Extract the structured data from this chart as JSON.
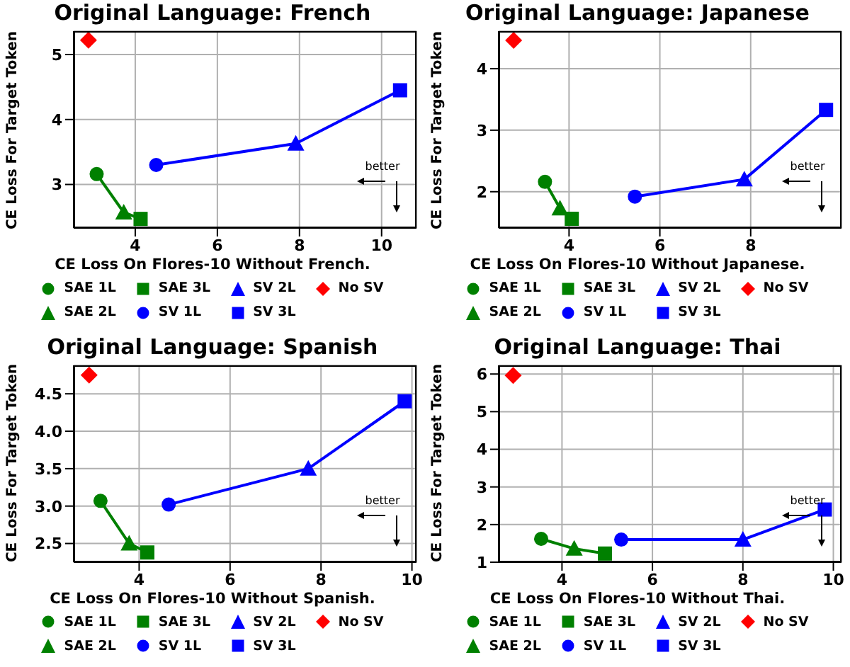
{
  "chart_data": [
    {
      "type": "scatter",
      "title": "Original Language: French",
      "xlabel": "CE Loss On Flores-10 Without French.",
      "ylabel": "CE Loss For Target Token",
      "xlim": [
        2.5,
        10.85
      ],
      "ylim": [
        2.33,
        5.36
      ],
      "xticks": [
        4,
        6,
        8,
        10
      ],
      "yticks": [
        3,
        4,
        5
      ],
      "grid": true,
      "legend": "bottom",
      "annotations": [
        "better"
      ],
      "series": [
        {
          "type": "line",
          "color": "#008000",
          "marker": "none",
          "x": [
            3.06,
            3.72,
            4.13
          ],
          "values": [
            3.16,
            2.57,
            2.47
          ]
        },
        {
          "type": "line",
          "color": "#0000ff",
          "marker": "none",
          "x": [
            4.51,
            7.91,
            10.45
          ],
          "values": [
            3.3,
            3.63,
            4.45
          ]
        },
        {
          "name": "SAE 1L",
          "color": "#008000",
          "marker": "circle",
          "x": [
            3.06
          ],
          "values": [
            3.16
          ]
        },
        {
          "name": "SAE 2L",
          "color": "#008000",
          "marker": "triangle",
          "x": [
            3.72
          ],
          "values": [
            2.57
          ]
        },
        {
          "name": "SAE 3L",
          "color": "#008000",
          "marker": "square",
          "x": [
            4.13
          ],
          "values": [
            2.47
          ]
        },
        {
          "name": "SV 1L",
          "color": "#0000ff",
          "marker": "circle",
          "x": [
            4.51
          ],
          "values": [
            3.3
          ]
        },
        {
          "name": "SV 2L",
          "color": "#0000ff",
          "marker": "triangle",
          "x": [
            7.91
          ],
          "values": [
            3.63
          ]
        },
        {
          "name": "SV 3L",
          "color": "#0000ff",
          "marker": "square",
          "x": [
            10.45
          ],
          "values": [
            4.45
          ]
        },
        {
          "name": "No SV",
          "color": "#ff0000",
          "marker": "diamond",
          "x": [
            2.86
          ],
          "values": [
            5.22
          ]
        }
      ]
    },
    {
      "type": "scatter",
      "title": "Original Language: Japanese",
      "xlabel": "CE Loss On Flores-10 Without Japanese.",
      "ylabel": "CE Loss For Target Token",
      "xlim": [
        2.45,
        10.0
      ],
      "ylim": [
        1.41,
        4.61
      ],
      "xticks": [
        4,
        6,
        8
      ],
      "yticks": [
        2,
        3,
        4
      ],
      "grid": true,
      "legend": "bottom",
      "annotations": [
        "better"
      ],
      "series": [
        {
          "type": "line",
          "color": "#008000",
          "marker": "none",
          "x": [
            3.47,
            3.8,
            4.06
          ],
          "values": [
            2.16,
            1.73,
            1.56
          ]
        },
        {
          "type": "line",
          "color": "#0000ff",
          "marker": "none",
          "x": [
            5.45,
            7.86,
            9.66
          ],
          "values": [
            1.92,
            2.2,
            3.33
          ]
        },
        {
          "name": "SAE 1L",
          "color": "#008000",
          "marker": "circle",
          "x": [
            3.47
          ],
          "values": [
            2.16
          ]
        },
        {
          "name": "SAE 2L",
          "color": "#008000",
          "marker": "triangle",
          "x": [
            3.8
          ],
          "values": [
            1.73
          ]
        },
        {
          "name": "SAE 3L",
          "color": "#008000",
          "marker": "square",
          "x": [
            4.06
          ],
          "values": [
            1.56
          ]
        },
        {
          "name": "SV 1L",
          "color": "#0000ff",
          "marker": "circle",
          "x": [
            5.45
          ],
          "values": [
            1.92
          ]
        },
        {
          "name": "SV 2L",
          "color": "#0000ff",
          "marker": "triangle",
          "x": [
            7.86
          ],
          "values": [
            2.2
          ]
        },
        {
          "name": "SV 3L",
          "color": "#0000ff",
          "marker": "square",
          "x": [
            9.66
          ],
          "values": [
            3.33
          ]
        },
        {
          "name": "No SV",
          "color": "#ff0000",
          "marker": "diamond",
          "x": [
            2.78
          ],
          "values": [
            4.46
          ]
        }
      ]
    },
    {
      "type": "scatter",
      "title": "Original Language: Spanish",
      "xlabel": "CE Loss On Flores-10 Without Spanish.",
      "ylabel": "CE Loss For Target Token",
      "xlim": [
        2.56,
        10.1
      ],
      "ylim": [
        2.25,
        4.88
      ],
      "xticks": [
        4,
        6,
        8,
        10
      ],
      "yticks": [
        2.5,
        {
          "value": 3,
          "label": "3.0"
        },
        3.5,
        {
          "value": 4,
          "label": "4.0"
        },
        4.5
      ],
      "grid": true,
      "legend": "bottom",
      "annotations": [
        "better"
      ],
      "series": [
        {
          "type": "line",
          "color": "#008000",
          "marker": "none",
          "x": [
            3.15,
            3.78,
            4.18
          ],
          "values": [
            3.07,
            2.5,
            2.38
          ]
        },
        {
          "type": "line",
          "color": "#0000ff",
          "marker": "none",
          "x": [
            4.65,
            7.72,
            9.84
          ],
          "values": [
            3.02,
            3.5,
            4.4
          ]
        },
        {
          "name": "SAE 1L",
          "color": "#008000",
          "marker": "circle",
          "x": [
            3.15
          ],
          "values": [
            3.07
          ]
        },
        {
          "name": "SAE 2L",
          "color": "#008000",
          "marker": "triangle",
          "x": [
            3.78
          ],
          "values": [
            2.5
          ]
        },
        {
          "name": "SAE 3L",
          "color": "#008000",
          "marker": "square",
          "x": [
            4.18
          ],
          "values": [
            2.38
          ]
        },
        {
          "name": "SV 1L",
          "color": "#0000ff",
          "marker": "circle",
          "x": [
            4.65
          ],
          "values": [
            3.02
          ]
        },
        {
          "name": "SV 2L",
          "color": "#0000ff",
          "marker": "triangle",
          "x": [
            7.72
          ],
          "values": [
            3.5
          ]
        },
        {
          "name": "SV 3L",
          "color": "#0000ff",
          "marker": "square",
          "x": [
            9.84
          ],
          "values": [
            4.4
          ]
        },
        {
          "name": "No SV",
          "color": "#ff0000",
          "marker": "diamond",
          "x": [
            2.9
          ],
          "values": [
            4.75
          ]
        }
      ]
    },
    {
      "type": "scatter",
      "title": "Original Language: Thai",
      "xlabel": "CE Loss On Flores-10 Without Thai.",
      "ylabel": "CE Loss For Target Token",
      "xlim": [
        2.6,
        10.18
      ],
      "ylim": [
        1,
        6.23
      ],
      "xticks": [
        4,
        6,
        8,
        10
      ],
      "yticks": [
        1,
        2,
        3,
        4,
        5,
        6
      ],
      "grid": true,
      "legend": "bottom",
      "annotations": [
        "better"
      ],
      "series": [
        {
          "type": "line",
          "color": "#008000",
          "marker": "none",
          "x": [
            3.54,
            4.27,
            4.95
          ],
          "values": [
            1.62,
            1.36,
            1.23
          ]
        },
        {
          "type": "line",
          "color": "#0000ff",
          "marker": "none",
          "x": [
            5.31,
            8.0,
            9.81
          ],
          "values": [
            1.6,
            1.6,
            2.4
          ]
        },
        {
          "name": "SAE 1L",
          "color": "#008000",
          "marker": "circle",
          "x": [
            3.54
          ],
          "values": [
            1.62
          ]
        },
        {
          "name": "SAE 2L",
          "color": "#008000",
          "marker": "triangle",
          "x": [
            4.27
          ],
          "values": [
            1.36
          ]
        },
        {
          "name": "SAE 3L",
          "color": "#008000",
          "marker": "square",
          "x": [
            4.95
          ],
          "values": [
            1.23
          ]
        },
        {
          "name": "SV 1L",
          "color": "#0000ff",
          "marker": "circle",
          "x": [
            5.31
          ],
          "values": [
            1.6
          ]
        },
        {
          "name": "SV 2L",
          "color": "#0000ff",
          "marker": "triangle",
          "x": [
            8.0
          ],
          "values": [
            1.6
          ]
        },
        {
          "name": "SV 3L",
          "color": "#0000ff",
          "marker": "square",
          "x": [
            9.81
          ],
          "values": [
            2.4
          ]
        },
        {
          "name": "No SV",
          "color": "#ff0000",
          "marker": "diamond",
          "x": [
            2.92
          ],
          "values": [
            5.96
          ]
        }
      ]
    }
  ]
}
